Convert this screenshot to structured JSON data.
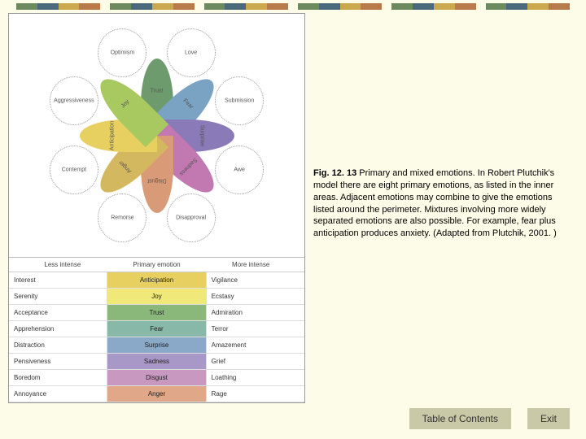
{
  "bars": {
    "colors": [
      "#6d8a5e",
      "#4a6a7a",
      "#c9a84e",
      "#b87a4a"
    ]
  },
  "caption": {
    "title": "Fig. 12. 13",
    "text": "Primary and mixed emotions. In Robert Plutchik's model there are eight primary emotions, as listed in the inner areas. Adjacent emotions may combine to give the emotions listed around the perimeter. Mixtures involving more widely separated emotions are also possible. For example, fear plus anticipation produces anxiety. (Adapted from Plutchik, 2001. )"
  },
  "wheel": {
    "petal_colors": [
      "#6d9b6d",
      "#7aa2c2",
      "#8a7ab8",
      "#c278b0",
      "#d99a78",
      "#d4b860",
      "#e8d060",
      "#a8c860"
    ],
    "inner_labels": [
      "Trust",
      "Fear",
      "Surprise",
      "Sadness",
      "Disgust",
      "Anger",
      "Anticipation",
      "Joy"
    ],
    "outer_labels": [
      "Love",
      "Submission",
      "Awe",
      "Disapproval",
      "Remorse",
      "Contempt",
      "Aggressiveness",
      "Optimism"
    ]
  },
  "table": {
    "headers": [
      "Less intense",
      "Primary emotion",
      "More intense"
    ],
    "rows": [
      {
        "less": "Interest",
        "primary": "Anticipation",
        "more": "Vigilance",
        "color": "#e8d060"
      },
      {
        "less": "Serenity",
        "primary": "Joy",
        "more": "Ecstasy",
        "color": "#f0e878"
      },
      {
        "less": "Acceptance",
        "primary": "Trust",
        "more": "Admiration",
        "color": "#8ab87a"
      },
      {
        "less": "Apprehension",
        "primary": "Fear",
        "more": "Terror",
        "color": "#88b8a8"
      },
      {
        "less": "Distraction",
        "primary": "Surprise",
        "more": "Amazement",
        "color": "#8aa8c8"
      },
      {
        "less": "Pensiveness",
        "primary": "Sadness",
        "more": "Grief",
        "color": "#a898c8"
      },
      {
        "less": "Boredom",
        "primary": "Disgust",
        "more": "Loathing",
        "color": "#c898c0"
      },
      {
        "less": "Annoyance",
        "primary": "Anger",
        "more": "Rage",
        "color": "#e0a888"
      }
    ]
  },
  "nav": {
    "toc": "Table of Contents",
    "exit": "Exit"
  }
}
